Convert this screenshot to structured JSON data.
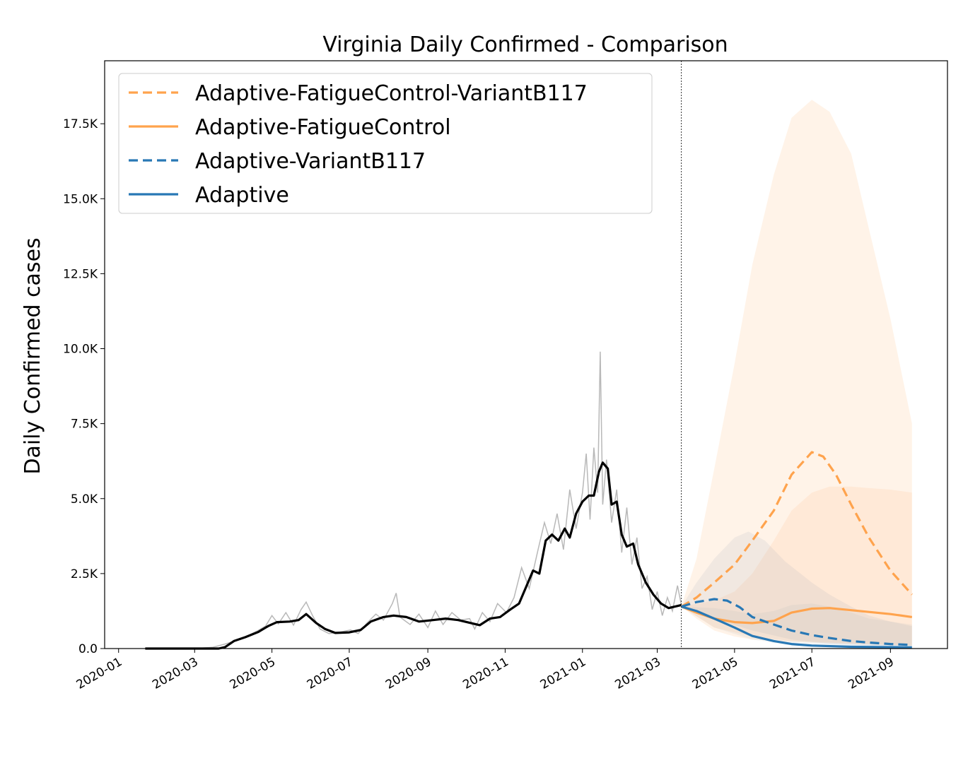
{
  "chart_data": {
    "type": "line",
    "title": "Virginia Daily Confirmed - Comparison",
    "xlabel": "",
    "ylabel": "Daily Confirmed cases",
    "x_axis": {
      "type": "date",
      "range": [
        "2019-12-21",
        "2021-10-16"
      ],
      "tick_values": [
        "2020-01-01",
        "2020-03-01",
        "2020-05-01",
        "2020-07-01",
        "2020-09-01",
        "2020-11-01",
        "2021-01-01",
        "2021-03-01",
        "2021-05-01",
        "2021-07-01",
        "2021-09-01"
      ],
      "tick_labels": [
        "2020-01",
        "2020-03",
        "2020-05",
        "2020-07",
        "2020-09",
        "2020-11",
        "2021-01",
        "2021-03",
        "2021-05",
        "2021-07",
        "2021-09"
      ],
      "tick_rotation": 30
    },
    "y_axis": {
      "range": [
        0,
        19600
      ],
      "tick_values": [
        0,
        2500,
        5000,
        7500,
        10000,
        12500,
        15000,
        17500
      ],
      "tick_labels": [
        "0.0",
        "2.5K",
        "5.0K",
        "7.5K",
        "10.0K",
        "12.5K",
        "15.0K",
        "17.5K"
      ]
    },
    "grid": false,
    "legend": {
      "placement": "upper-left",
      "entries": [
        "Adaptive-FatigueControl-VariantB117",
        "Adaptive-FatigueControl",
        "Adaptive-VariantB117",
        "Adaptive"
      ]
    },
    "forecast_start": "2021-03-20",
    "observed": {
      "raw_color": "#b8b8b8",
      "smoothed_color": "#000000",
      "raw_points": [
        [
          "2020-01-22",
          0
        ],
        [
          "2020-03-01",
          0
        ],
        [
          "2020-03-15",
          40
        ],
        [
          "2020-03-25",
          150
        ],
        [
          "2020-04-05",
          300
        ],
        [
          "2020-04-12",
          430
        ],
        [
          "2020-04-20",
          600
        ],
        [
          "2020-04-26",
          750
        ],
        [
          "2020-05-01",
          1100
        ],
        [
          "2020-05-06",
          820
        ],
        [
          "2020-05-12",
          1200
        ],
        [
          "2020-05-18",
          780
        ],
        [
          "2020-05-24",
          1300
        ],
        [
          "2020-05-28",
          1550
        ],
        [
          "2020-06-02",
          1100
        ],
        [
          "2020-06-08",
          650
        ],
        [
          "2020-06-15",
          500
        ],
        [
          "2020-06-25",
          560
        ],
        [
          "2020-07-02",
          620
        ],
        [
          "2020-07-08",
          500
        ],
        [
          "2020-07-15",
          850
        ],
        [
          "2020-07-22",
          1150
        ],
        [
          "2020-07-28",
          950
        ],
        [
          "2020-08-04",
          1500
        ],
        [
          "2020-08-07",
          1850
        ],
        [
          "2020-08-10",
          1050
        ],
        [
          "2020-08-18",
          800
        ],
        [
          "2020-08-25",
          1150
        ],
        [
          "2020-09-01",
          700
        ],
        [
          "2020-09-07",
          1250
        ],
        [
          "2020-09-13",
          800
        ],
        [
          "2020-09-20",
          1200
        ],
        [
          "2020-09-27",
          950
        ],
        [
          "2020-10-04",
          1000
        ],
        [
          "2020-10-08",
          650
        ],
        [
          "2020-10-14",
          1200
        ],
        [
          "2020-10-20",
          900
        ],
        [
          "2020-10-26",
          1500
        ],
        [
          "2020-11-02",
          1200
        ],
        [
          "2020-11-08",
          1700
        ],
        [
          "2020-11-14",
          2700
        ],
        [
          "2020-11-20",
          2000
        ],
        [
          "2020-11-27",
          3300
        ],
        [
          "2020-12-02",
          4200
        ],
        [
          "2020-12-07",
          3500
        ],
        [
          "2020-12-12",
          4500
        ],
        [
          "2020-12-17",
          3300
        ],
        [
          "2020-12-22",
          5300
        ],
        [
          "2020-12-27",
          4000
        ],
        [
          "2021-01-01",
          5200
        ],
        [
          "2021-01-04",
          6500
        ],
        [
          "2021-01-07",
          4300
        ],
        [
          "2021-01-10",
          6700
        ],
        [
          "2021-01-13",
          5200
        ],
        [
          "2021-01-15",
          9900
        ],
        [
          "2021-01-17",
          4800
        ],
        [
          "2021-01-20",
          6300
        ],
        [
          "2021-01-24",
          4200
        ],
        [
          "2021-01-28",
          5300
        ],
        [
          "2021-02-01",
          3200
        ],
        [
          "2021-02-05",
          4700
        ],
        [
          "2021-02-09",
          2800
        ],
        [
          "2021-02-13",
          3700
        ],
        [
          "2021-02-17",
          2000
        ],
        [
          "2021-02-21",
          2400
        ],
        [
          "2021-02-25",
          1300
        ],
        [
          "2021-03-01",
          1900
        ],
        [
          "2021-03-05",
          1100
        ],
        [
          "2021-03-09",
          1700
        ],
        [
          "2021-03-13",
          1250
        ],
        [
          "2021-03-17",
          2100
        ],
        [
          "2021-03-20",
          1450
        ]
      ],
      "smoothed_points": [
        [
          "2020-01-22",
          0
        ],
        [
          "2020-03-20",
          0
        ],
        [
          "2020-03-25",
          50
        ],
        [
          "2020-04-01",
          250
        ],
        [
          "2020-04-10",
          380
        ],
        [
          "2020-04-20",
          550
        ],
        [
          "2020-04-28",
          750
        ],
        [
          "2020-05-05",
          880
        ],
        [
          "2020-05-15",
          900
        ],
        [
          "2020-05-22",
          950
        ],
        [
          "2020-05-28",
          1150
        ],
        [
          "2020-06-05",
          850
        ],
        [
          "2020-06-12",
          650
        ],
        [
          "2020-06-20",
          520
        ],
        [
          "2020-07-01",
          540
        ],
        [
          "2020-07-10",
          620
        ],
        [
          "2020-07-18",
          900
        ],
        [
          "2020-07-28",
          1050
        ],
        [
          "2020-08-05",
          1100
        ],
        [
          "2020-08-15",
          1050
        ],
        [
          "2020-08-25",
          900
        ],
        [
          "2020-09-05",
          950
        ],
        [
          "2020-09-15",
          1000
        ],
        [
          "2020-09-25",
          950
        ],
        [
          "2020-10-05",
          850
        ],
        [
          "2020-10-12",
          780
        ],
        [
          "2020-10-20",
          1000
        ],
        [
          "2020-10-28",
          1050
        ],
        [
          "2020-11-05",
          1300
        ],
        [
          "2020-11-12",
          1500
        ],
        [
          "2020-11-18",
          2100
        ],
        [
          "2020-11-23",
          2600
        ],
        [
          "2020-11-28",
          2500
        ],
        [
          "2020-12-03",
          3600
        ],
        [
          "2020-12-08",
          3800
        ],
        [
          "2020-12-13",
          3600
        ],
        [
          "2020-12-18",
          4000
        ],
        [
          "2020-12-22",
          3700
        ],
        [
          "2020-12-27",
          4500
        ],
        [
          "2021-01-01",
          4900
        ],
        [
          "2021-01-06",
          5100
        ],
        [
          "2021-01-10",
          5100
        ],
        [
          "2021-01-14",
          5900
        ],
        [
          "2021-01-17",
          6200
        ],
        [
          "2021-01-21",
          6000
        ],
        [
          "2021-01-24",
          4800
        ],
        [
          "2021-01-28",
          4900
        ],
        [
          "2021-02-01",
          3800
        ],
        [
          "2021-02-05",
          3400
        ],
        [
          "2021-02-10",
          3500
        ],
        [
          "2021-02-14",
          2800
        ],
        [
          "2021-02-20",
          2200
        ],
        [
          "2021-02-26",
          1800
        ],
        [
          "2021-03-04",
          1500
        ],
        [
          "2021-03-10",
          1350
        ],
        [
          "2021-03-15",
          1400
        ],
        [
          "2021-03-20",
          1450
        ]
      ]
    },
    "series": [
      {
        "name": "Adaptive-FatigueControl-VariantB117",
        "color": "#ffa34d",
        "dash": "dashed",
        "points": [
          [
            "2021-03-20",
            1400
          ],
          [
            "2021-04-01",
            1700
          ],
          [
            "2021-04-15",
            2200
          ],
          [
            "2021-05-01",
            2800
          ],
          [
            "2021-05-15",
            3600
          ],
          [
            "2021-06-01",
            4600
          ],
          [
            "2021-06-15",
            5800
          ],
          [
            "2021-07-01",
            6550
          ],
          [
            "2021-07-10",
            6400
          ],
          [
            "2021-07-20",
            5800
          ],
          [
            "2021-08-01",
            4800
          ],
          [
            "2021-08-15",
            3700
          ],
          [
            "2021-09-01",
            2600
          ],
          [
            "2021-09-18",
            1800
          ]
        ],
        "band": {
          "upper": [
            [
              "2021-03-20",
              1400
            ],
            [
              "2021-04-01",
              3000
            ],
            [
              "2021-04-15",
              6000
            ],
            [
              "2021-05-01",
              9500
            ],
            [
              "2021-05-15",
              12800
            ],
            [
              "2021-06-01",
              15800
            ],
            [
              "2021-06-15",
              17700
            ],
            [
              "2021-07-01",
              18300
            ],
            [
              "2021-07-15",
              17900
            ],
            [
              "2021-08-01",
              16500
            ],
            [
              "2021-08-15",
              14000
            ],
            [
              "2021-09-01",
              11000
            ],
            [
              "2021-09-18",
              7500
            ]
          ],
          "lower": [
            [
              "2021-03-20",
              1400
            ],
            [
              "2021-04-01",
              1000
            ],
            [
              "2021-04-15",
              600
            ],
            [
              "2021-05-01",
              400
            ],
            [
              "2021-05-15",
              300
            ],
            [
              "2021-06-01",
              250
            ],
            [
              "2021-07-01",
              200
            ],
            [
              "2021-08-01",
              150
            ],
            [
              "2021-09-18",
              100
            ]
          ]
        }
      },
      {
        "name": "Adaptive-FatigueControl",
        "color": "#ffa34d",
        "dash": "solid",
        "points": [
          [
            "2021-03-20",
            1400
          ],
          [
            "2021-04-01",
            1200
          ],
          [
            "2021-04-15",
            1000
          ],
          [
            "2021-05-01",
            880
          ],
          [
            "2021-05-15",
            850
          ],
          [
            "2021-06-01",
            920
          ],
          [
            "2021-06-15",
            1200
          ],
          [
            "2021-07-01",
            1330
          ],
          [
            "2021-07-15",
            1350
          ],
          [
            "2021-08-01",
            1280
          ],
          [
            "2021-08-15",
            1220
          ],
          [
            "2021-09-01",
            1150
          ],
          [
            "2021-09-18",
            1050
          ]
        ],
        "band": {
          "upper": [
            [
              "2021-03-20",
              1400
            ],
            [
              "2021-04-15",
              1600
            ],
            [
              "2021-05-01",
              1900
            ],
            [
              "2021-05-15",
              2500
            ],
            [
              "2021-06-01",
              3600
            ],
            [
              "2021-06-15",
              4600
            ],
            [
              "2021-07-01",
              5200
            ],
            [
              "2021-07-15",
              5400
            ],
            [
              "2021-08-01",
              5400
            ],
            [
              "2021-08-15",
              5350
            ],
            [
              "2021-09-01",
              5300
            ],
            [
              "2021-09-18",
              5200
            ]
          ],
          "lower": [
            [
              "2021-03-20",
              1400
            ],
            [
              "2021-04-15",
              700
            ],
            [
              "2021-05-15",
              400
            ],
            [
              "2021-06-15",
              250
            ],
            [
              "2021-07-15",
              200
            ],
            [
              "2021-08-15",
              150
            ],
            [
              "2021-09-18",
              100
            ]
          ]
        }
      },
      {
        "name": "Adaptive-VariantB117",
        "color": "#2878b5",
        "dash": "dashed",
        "points": [
          [
            "2021-03-20",
            1400
          ],
          [
            "2021-04-01",
            1550
          ],
          [
            "2021-04-15",
            1650
          ],
          [
            "2021-04-25",
            1600
          ],
          [
            "2021-05-05",
            1380
          ],
          [
            "2021-05-15",
            1050
          ],
          [
            "2021-06-01",
            800
          ],
          [
            "2021-06-15",
            600
          ],
          [
            "2021-07-01",
            450
          ],
          [
            "2021-07-15",
            350
          ],
          [
            "2021-08-01",
            250
          ],
          [
            "2021-08-15",
            200
          ],
          [
            "2021-09-01",
            150
          ],
          [
            "2021-09-18",
            120
          ]
        ],
        "band": {
          "upper": [
            [
              "2021-03-20",
              1400
            ],
            [
              "2021-04-01",
              2200
            ],
            [
              "2021-04-15",
              3000
            ],
            [
              "2021-05-01",
              3700
            ],
            [
              "2021-05-12",
              3900
            ],
            [
              "2021-05-25",
              3600
            ],
            [
              "2021-06-10",
              2900
            ],
            [
              "2021-07-01",
              2200
            ],
            [
              "2021-07-15",
              1800
            ],
            [
              "2021-08-01",
              1400
            ],
            [
              "2021-08-15",
              1100
            ],
            [
              "2021-09-01",
              900
            ],
            [
              "2021-09-18",
              750
            ]
          ],
          "lower": [
            [
              "2021-03-20",
              1400
            ],
            [
              "2021-04-15",
              1000
            ],
            [
              "2021-05-15",
              600
            ],
            [
              "2021-06-15",
              300
            ],
            [
              "2021-07-15",
              150
            ],
            [
              "2021-09-18",
              50
            ]
          ]
        }
      },
      {
        "name": "Adaptive",
        "color": "#2878b5",
        "dash": "solid",
        "points": [
          [
            "2021-03-20",
            1400
          ],
          [
            "2021-04-01",
            1250
          ],
          [
            "2021-04-15",
            1000
          ],
          [
            "2021-05-01",
            700
          ],
          [
            "2021-05-15",
            420
          ],
          [
            "2021-06-01",
            250
          ],
          [
            "2021-06-15",
            150
          ],
          [
            "2021-07-01",
            100
          ],
          [
            "2021-08-01",
            60
          ],
          [
            "2021-09-18",
            40
          ]
        ],
        "band": {
          "upper": [
            [
              "2021-03-20",
              1400
            ],
            [
              "2021-04-15",
              1350
            ],
            [
              "2021-05-01",
              1250
            ],
            [
              "2021-05-15",
              1150
            ],
            [
              "2021-06-01",
              1250
            ],
            [
              "2021-06-15",
              1450
            ],
            [
              "2021-07-01",
              1500
            ],
            [
              "2021-07-15",
              1400
            ],
            [
              "2021-08-01",
              1200
            ],
            [
              "2021-08-15",
              1000
            ],
            [
              "2021-09-01",
              900
            ],
            [
              "2021-09-18",
              800
            ]
          ],
          "lower": [
            [
              "2021-03-20",
              1400
            ],
            [
              "2021-04-15",
              700
            ],
            [
              "2021-05-15",
              300
            ],
            [
              "2021-06-15",
              100
            ],
            [
              "2021-09-18",
              20
            ]
          ]
        }
      }
    ]
  }
}
